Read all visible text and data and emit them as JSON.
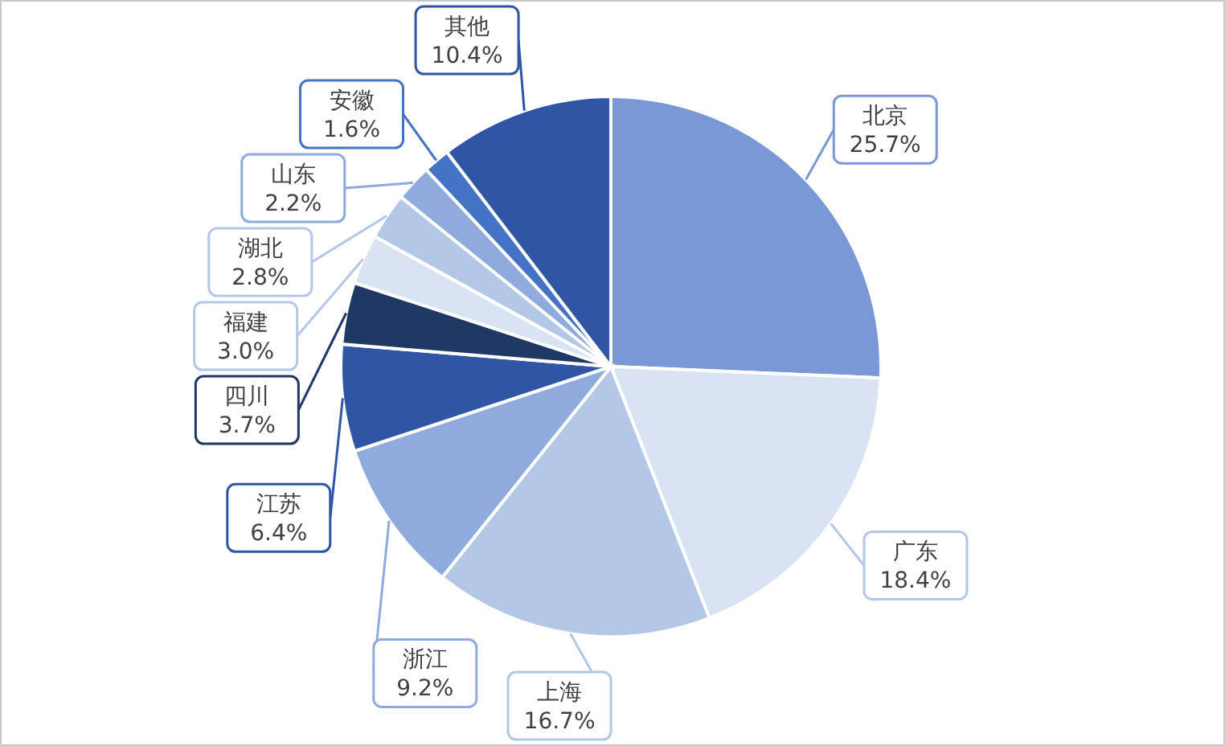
{
  "chart_data": {
    "type": "pie",
    "categories": [
      "北京",
      "广东",
      "上海",
      "浙江",
      "江苏",
      "四川",
      "福建",
      "湖北",
      "山东",
      "安徽",
      "其他"
    ],
    "values": [
      25.7,
      18.4,
      16.7,
      9.2,
      6.4,
      3.7,
      3.0,
      2.8,
      2.2,
      1.6,
      10.4
    ],
    "colors": [
      "#7b98d6",
      "#dae3f3",
      "#b4c7e7",
      "#8faadc",
      "#2f55a4",
      "#1f3864",
      "#dae3f3",
      "#b4c7e7",
      "#8faadc",
      "#4472c4",
      "#2f55a4"
    ],
    "value_labels": [
      "25.7%",
      "18.4%",
      "16.7%",
      "9.2%",
      "6.4%",
      "3.7%",
      "3.0%",
      "2.8%",
      "2.2%",
      "1.6%",
      "10.4%"
    ]
  }
}
